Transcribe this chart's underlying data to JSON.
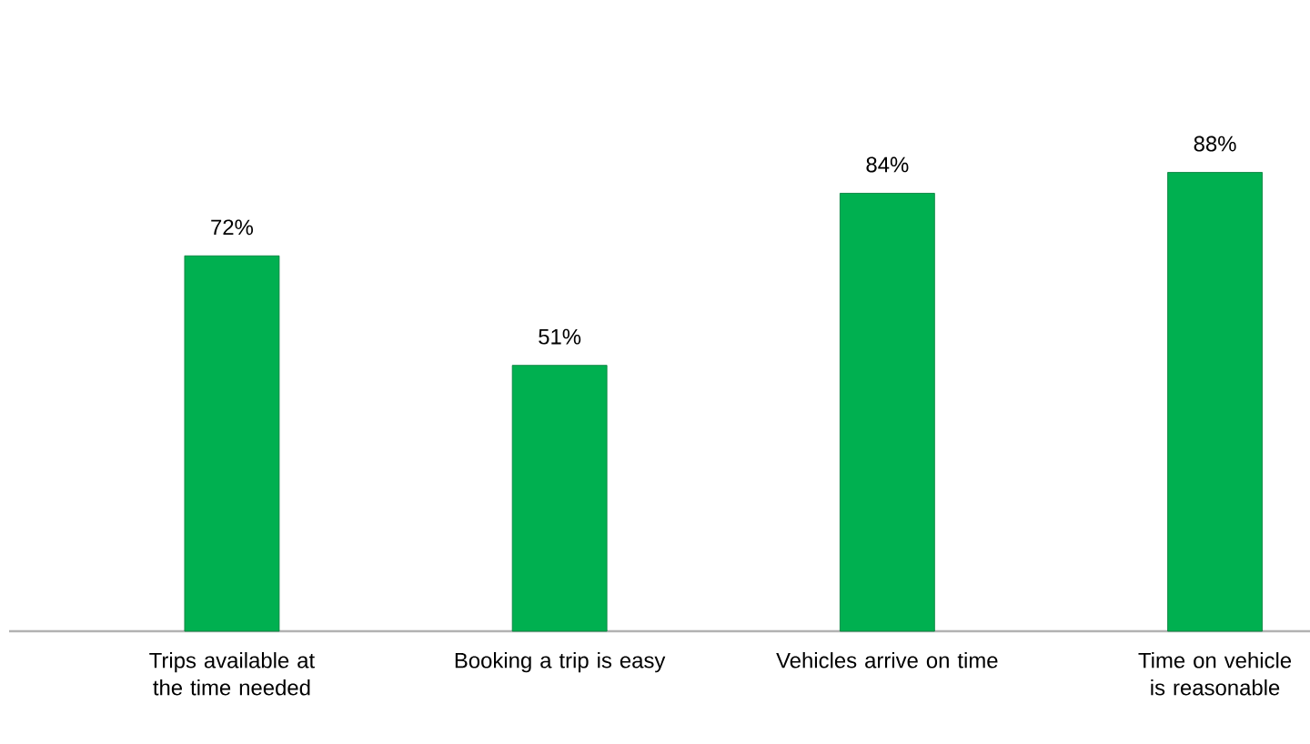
{
  "chart_data": {
    "type": "bar",
    "categories": [
      "Trips available at the time needed",
      "Booking a trip is easy",
      "Vehicles arrive on time",
      "Time on vehicle is reasonable"
    ],
    "values": [
      72,
      51,
      84,
      88
    ],
    "value_labels": [
      "72%",
      "51%",
      "84%",
      "88%"
    ],
    "color": "#00b050"
  }
}
